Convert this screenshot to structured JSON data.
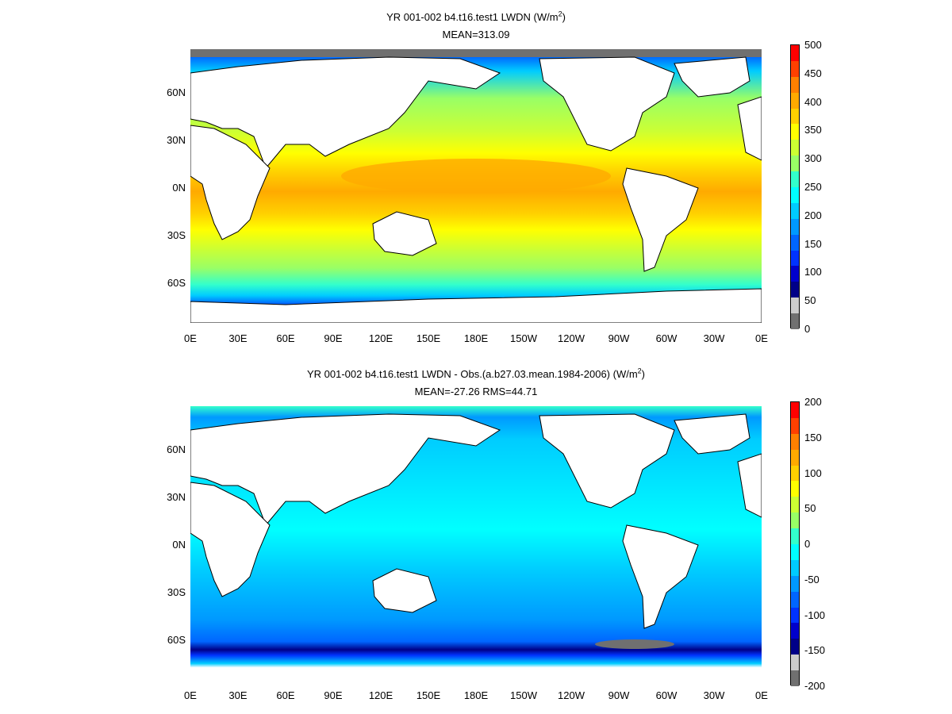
{
  "panels": [
    {
      "title_line1": "YR 001-002 b4.t16.test1 LWDN (W/m",
      "title_sup": "2",
      "title_tail": ")",
      "title_line2": "MEAN=313.09",
      "lat_labels": [
        "60N",
        "30N",
        "0N",
        "30S",
        "60S"
      ],
      "lon_labels": [
        "0E",
        "30E",
        "60E",
        "90E",
        "120E",
        "150E",
        "180E",
        "150W",
        "120W",
        "90W",
        "60W",
        "30W",
        "0E"
      ],
      "colorbar": {
        "labels": [
          "500",
          "450",
          "400",
          "350",
          "300",
          "250",
          "200",
          "150",
          "100",
          "50",
          "0"
        ],
        "colors": [
          "#ff0000",
          "#ff4000",
          "#ff8000",
          "#ffaa00",
          "#ffd000",
          "#ffff00",
          "#ccff33",
          "#99ff66",
          "#33ffcc",
          "#00ffff",
          "#00ccff",
          "#0099ff",
          "#0066ff",
          "#0033ff",
          "#0000cc",
          "#000088",
          "#cccccc",
          "#707070"
        ]
      }
    },
    {
      "title_line1": "YR 001-002 b4.t16.test1 LWDN - Obs.(a.b27.03.mean.1984-2006) (W/m",
      "title_sup": "2",
      "title_tail": ")",
      "title_line2": "MEAN=-27.26 RMS=44.71",
      "lat_labels": [
        "60N",
        "30N",
        "0N",
        "30S",
        "60S"
      ],
      "lon_labels": [
        "0E",
        "30E",
        "60E",
        "90E",
        "120E",
        "150E",
        "180E",
        "150W",
        "120W",
        "90W",
        "60W",
        "30W",
        "0E"
      ],
      "colorbar": {
        "labels": [
          "200",
          "150",
          "100",
          "50",
          "0",
          "-50",
          "-100",
          "-150",
          "-200"
        ],
        "colors": [
          "#ff0000",
          "#ff4000",
          "#ff8000",
          "#ffaa00",
          "#ffd000",
          "#ffff00",
          "#ccff33",
          "#99ff66",
          "#33ffcc",
          "#00ffff",
          "#00ccff",
          "#0099ff",
          "#0066ff",
          "#0033ff",
          "#0000cc",
          "#000088",
          "#cccccc",
          "#707070"
        ]
      }
    }
  ]
}
